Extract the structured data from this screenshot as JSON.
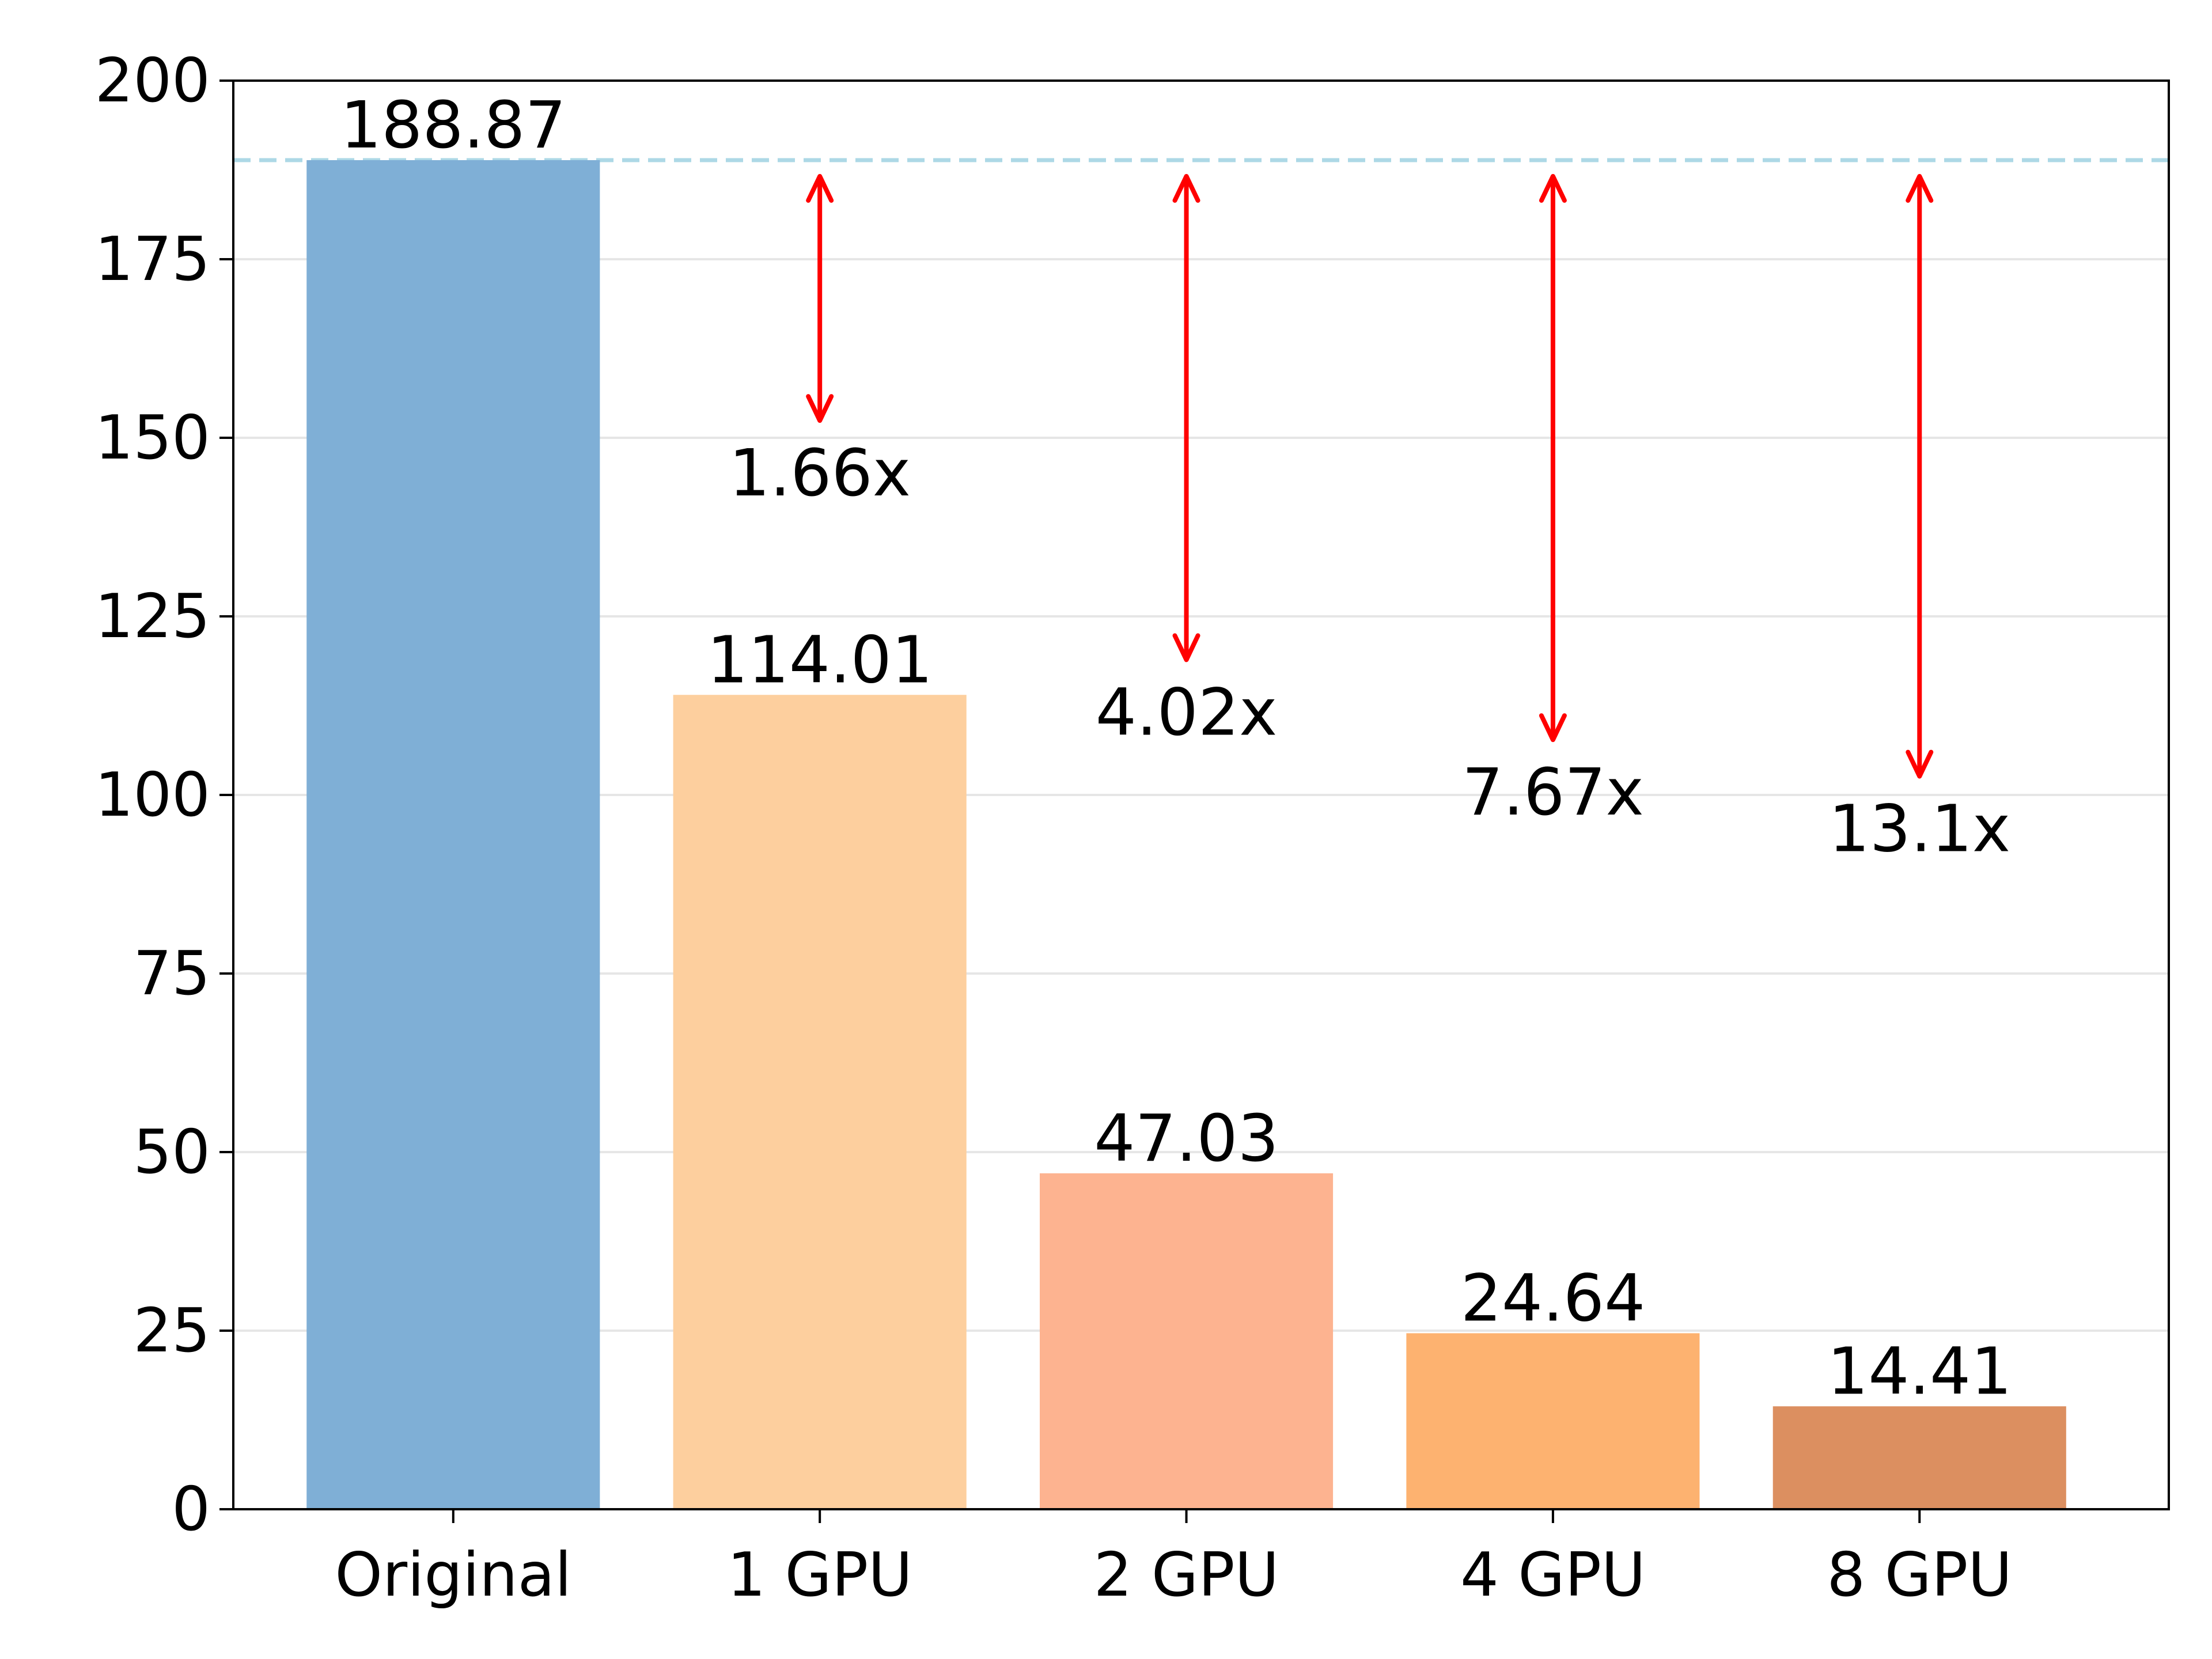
{
  "chart_data": {
    "type": "bar",
    "categories": [
      "Original",
      "1 GPU",
      "2 GPU",
      "4 GPU",
      "8 GPU"
    ],
    "values": [
      188.87,
      114.01,
      47.03,
      24.64,
      14.41
    ],
    "value_labels": [
      "188.87",
      "114.01",
      "47.03",
      "24.64",
      "14.41"
    ],
    "bar_colors": [
      "#7fafd6",
      "#fdcf9e",
      "#fdb390",
      "#fdb270",
      "#dc8f60"
    ],
    "reference_line": {
      "value": 188.87,
      "color": "#add8e6",
      "style": "dashed"
    },
    "speedups": [
      {
        "category": "1 GPU",
        "label": "1.66x"
      },
      {
        "category": "2 GPU",
        "label": "4.02x"
      },
      {
        "category": "4 GPU",
        "label": "7.67x"
      },
      {
        "category": "8 GPU",
        "label": "13.1x"
      }
    ],
    "arrow_color": "#ff0000",
    "ylim": [
      0,
      200
    ],
    "yticks": [
      0,
      25,
      50,
      75,
      100,
      125,
      150,
      175,
      200
    ],
    "grid": "horizontal",
    "title": "",
    "xlabel": "",
    "ylabel": ""
  }
}
